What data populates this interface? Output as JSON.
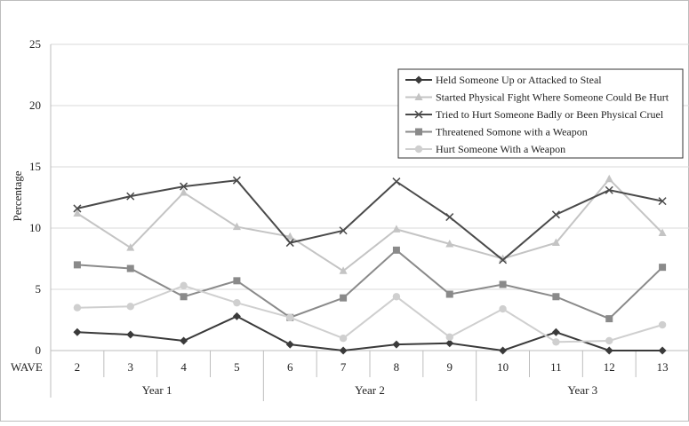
{
  "chart_data": {
    "type": "line",
    "ylabel": "Percentage",
    "ylim": [
      0,
      25
    ],
    "yticks": [
      0,
      5,
      10,
      15,
      20,
      25
    ],
    "grid": true,
    "legend_position": "top-right",
    "x_row_label": "WAVE",
    "categories": [
      "2",
      "3",
      "4",
      "5",
      "6",
      "7",
      "8",
      "9",
      "10",
      "11",
      "12",
      "13"
    ],
    "groups": [
      {
        "label": "Year 1",
        "from": 0,
        "to": 3
      },
      {
        "label": "Year 2",
        "from": 4,
        "to": 7
      },
      {
        "label": "Year 3",
        "from": 8,
        "to": 11
      }
    ],
    "series": [
      {
        "name": "Held Someone Up or Attacked to Steal",
        "color": "#3a3a3a",
        "marker": "diamond",
        "values": [
          1.5,
          1.3,
          0.8,
          2.8,
          0.5,
          0.0,
          0.5,
          0.6,
          0.0,
          1.5,
          0.0,
          0.0
        ]
      },
      {
        "name": "Started Physical Fight Where Someone Could Be Hurt",
        "color": "#c4c4c4",
        "marker": "triangle",
        "values": [
          11.2,
          8.4,
          12.9,
          10.1,
          9.3,
          6.5,
          9.9,
          8.7,
          7.5,
          8.8,
          14.0,
          9.6
        ]
      },
      {
        "name": "Tried to Hurt Someone Badly or Been Physical Cruel",
        "color": "#4a4a4a",
        "marker": "x",
        "values": [
          11.6,
          12.6,
          13.4,
          13.9,
          8.8,
          9.8,
          13.8,
          10.9,
          7.4,
          11.1,
          13.1,
          12.2
        ]
      },
      {
        "name": "Threatened Somone with a Weapon",
        "color": "#8a8a8a",
        "marker": "square",
        "values": [
          7.0,
          6.7,
          4.4,
          5.7,
          2.7,
          4.3,
          8.2,
          4.6,
          5.4,
          4.4,
          2.6,
          6.8
        ]
      },
      {
        "name": "Hurt Someone With a Weapon",
        "color": "#cfcfcf",
        "marker": "circle",
        "values": [
          3.5,
          3.6,
          5.3,
          3.9,
          2.7,
          1.0,
          4.4,
          1.1,
          3.4,
          0.7,
          0.8,
          2.1
        ]
      }
    ]
  }
}
